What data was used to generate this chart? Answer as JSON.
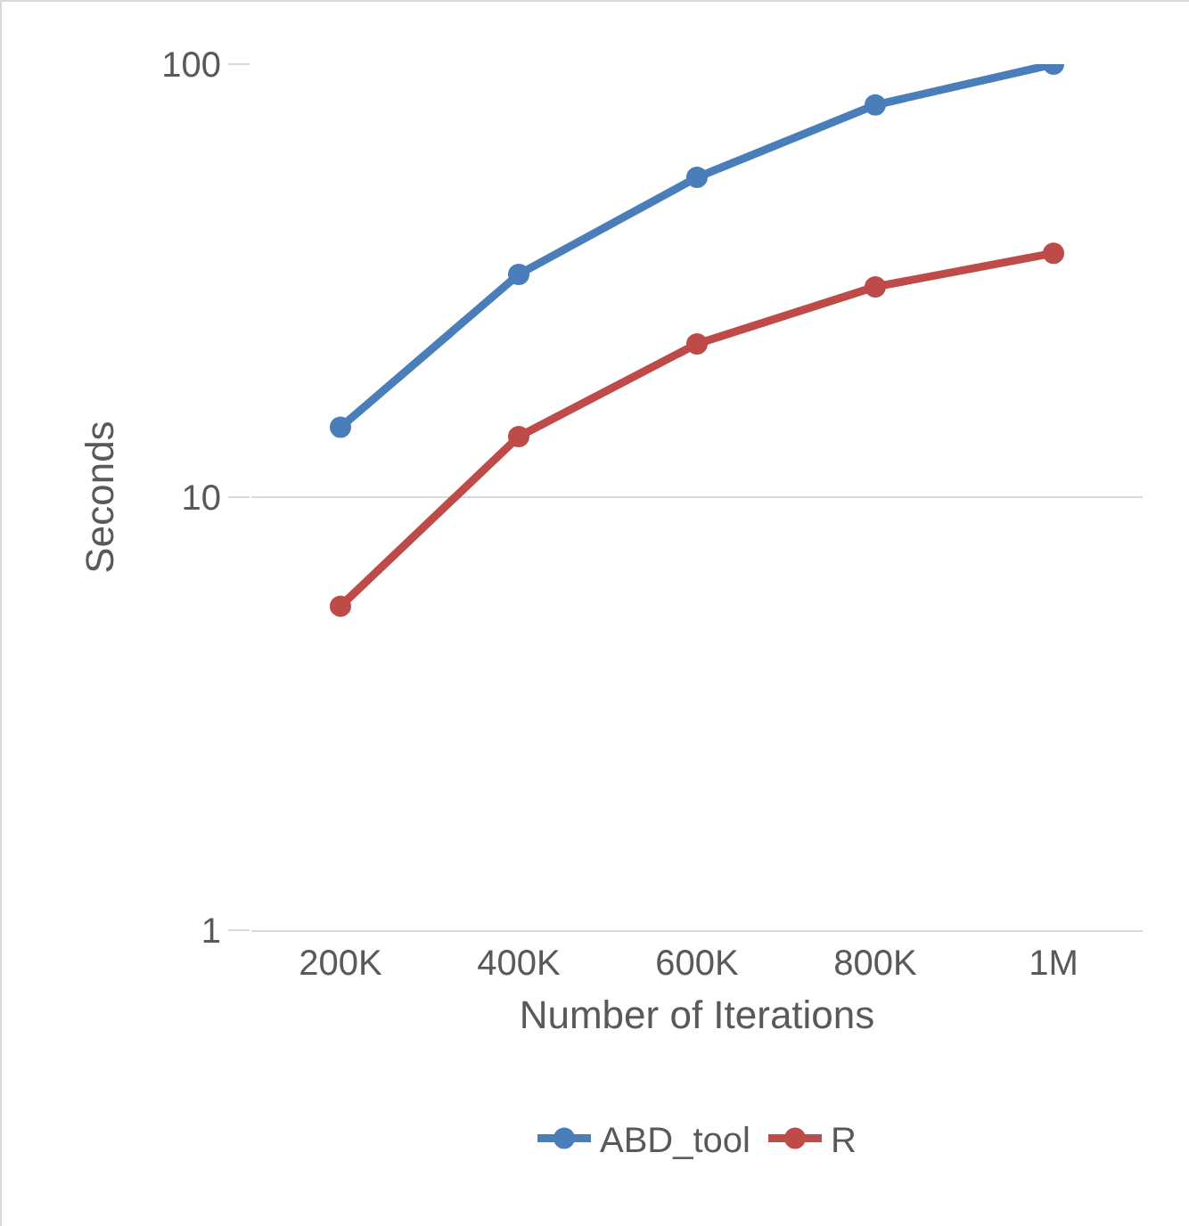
{
  "chart_data": {
    "type": "line",
    "xlabel": "Number of Iterations",
    "ylabel": "Seconds",
    "categories": [
      "200K",
      "400K",
      "600K",
      "800K",
      "1M"
    ],
    "series": [
      {
        "name": "ABD_tool",
        "color": "#4a7ebb",
        "values": [
          14.5,
          32.7,
          54.8,
          80.5,
          100
        ]
      },
      {
        "name": "R",
        "color": "#be4b48",
        "values": [
          5.6,
          13.8,
          22.6,
          30.6,
          36.6
        ]
      }
    ],
    "ylim": [
      1,
      100
    ],
    "yticks": [
      1,
      10,
      100
    ],
    "log": true,
    "grid": "y",
    "legend": "bottom",
    "marker": "circle",
    "line_style": "solid"
  }
}
